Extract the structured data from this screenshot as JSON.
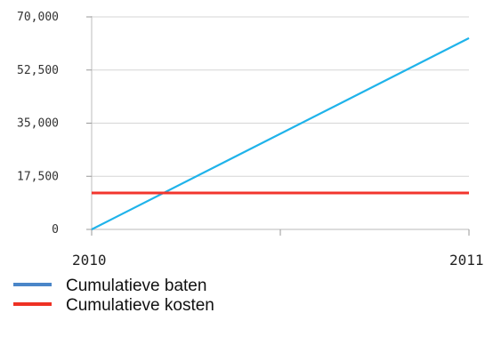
{
  "chart_data": {
    "type": "line",
    "x": [
      2010,
      2011
    ],
    "x_tick_labels": [
      "2010",
      "2011"
    ],
    "xlim": [
      2010,
      2011
    ],
    "ylim": [
      0,
      70000
    ],
    "y_ticks": [
      0,
      17500,
      35000,
      52500,
      70000
    ],
    "y_tick_labels": [
      "0",
      "17,500",
      "35,000",
      "52,500",
      "70,000"
    ],
    "grid": "horizontal",
    "legend_position": "bottom-left",
    "series": [
      {
        "name": "Cumulatieve baten",
        "values": [
          0,
          63000
        ],
        "color": "#1fb3ea",
        "legend_color": "#4a86c8"
      },
      {
        "name": "Cumulatieve kosten",
        "values": [
          12000,
          12000
        ],
        "color": "#f2352d",
        "legend_color": "#ee3124"
      }
    ]
  }
}
